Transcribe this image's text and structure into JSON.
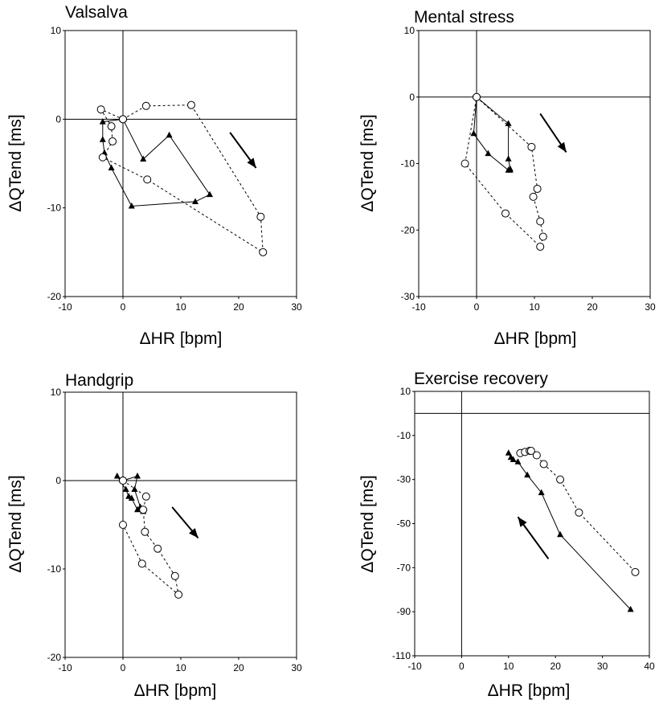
{
  "chart_data": [
    {
      "type": "scatter",
      "title": "Valsalva",
      "xlabel": "ΔHR [bpm]",
      "ylabel": "ΔQTend [ms]",
      "xlim": [
        -10,
        30
      ],
      "ylim": [
        -20,
        10
      ],
      "xticks": [
        "-10",
        "0",
        "10",
        "20",
        "30"
      ],
      "yticks": [
        "10",
        "0",
        "-10",
        "-20"
      ],
      "arrow": {
        "from": [
          18.5,
          -1.5
        ],
        "to": [
          23,
          -5.5
        ]
      },
      "series": [
        {
          "marker": "triangle",
          "line": "solid",
          "points": [
            [
              0,
              0
            ],
            [
              3.5,
              -4.5
            ],
            [
              8,
              -1.8
            ],
            [
              15,
              -8.5
            ],
            [
              12.5,
              -9.3
            ],
            [
              1.5,
              -9.8
            ],
            [
              -2,
              -5.5
            ],
            [
              -3.2,
              -3.8
            ],
            [
              -3.5,
              -2.3
            ],
            [
              -3.5,
              -0.3
            ],
            [
              0,
              0
            ]
          ]
        },
        {
          "marker": "circle",
          "line": "dashed",
          "points": [
            [
              0,
              0
            ],
            [
              4,
              1.5
            ],
            [
              11.8,
              1.6
            ],
            [
              23.8,
              -11
            ],
            [
              24.2,
              -15
            ],
            [
              4.2,
              -6.8
            ],
            [
              -3.5,
              -4.3
            ],
            [
              -1.8,
              -2.5
            ],
            [
              -2,
              -0.8
            ],
            [
              -3.8,
              1.1
            ],
            [
              0,
              0
            ]
          ]
        }
      ]
    },
    {
      "type": "scatter",
      "title": "Mental stress",
      "xlabel": "ΔHR [bpm]",
      "ylabel": "ΔQTend [ms]",
      "xlim": [
        -10,
        30
      ],
      "ylim": [
        -30,
        10
      ],
      "xticks": [
        "-10",
        "0",
        "10",
        "20",
        "30"
      ],
      "yticks": [
        "10",
        "0",
        "-10",
        "-20",
        "-30"
      ],
      "arrow": {
        "from": [
          11,
          -2.5
        ],
        "to": [
          15.5,
          -8.3
        ]
      },
      "series": [
        {
          "marker": "triangle",
          "line": "solid",
          "points": [
            [
              0,
              0
            ],
            [
              5.5,
              -4
            ],
            [
              5.5,
              -9.3
            ],
            [
              5.8,
              -10.8
            ],
            [
              5.8,
              -11
            ],
            [
              5.5,
              -11
            ],
            [
              2,
              -8.5
            ],
            [
              -0.5,
              -5.5
            ],
            [
              0,
              0
            ]
          ]
        },
        {
          "marker": "circle",
          "line": "dashed",
          "points": [
            [
              0,
              0
            ],
            [
              9.5,
              -7.5
            ],
            [
              10.5,
              -13.8
            ],
            [
              9.8,
              -15
            ],
            [
              11,
              -18.7
            ],
            [
              11.5,
              -21
            ],
            [
              11,
              -22.5
            ],
            [
              5,
              -17.5
            ],
            [
              -2,
              -10
            ],
            [
              0,
              0
            ]
          ]
        }
      ]
    },
    {
      "type": "scatter",
      "title": "Handgrip",
      "xlabel": "ΔHR [bpm]",
      "ylabel": "ΔQTend [ms]",
      "xlim": [
        -10,
        30
      ],
      "ylim": [
        -20,
        10
      ],
      "xticks": [
        "-10",
        "0",
        "10",
        "20",
        "30"
      ],
      "yticks": [
        "10",
        "0",
        "-10",
        "-20"
      ],
      "arrow": {
        "from": [
          8.5,
          -3
        ],
        "to": [
          13,
          -6.5
        ]
      },
      "series": [
        {
          "marker": "triangle",
          "line": "solid",
          "points": [
            [
              0,
              0
            ],
            [
              2.5,
              0.5
            ],
            [
              2,
              -1
            ],
            [
              3,
              -3
            ],
            [
              3.5,
              -3.5
            ],
            [
              2.5,
              -3.3
            ],
            [
              1.5,
              -2
            ],
            [
              1,
              -1.8
            ],
            [
              0.5,
              -1
            ],
            [
              -1,
              0.5
            ],
            [
              0,
              0
            ]
          ]
        },
        {
          "marker": "circle",
          "line": "dashed",
          "points": [
            [
              0,
              0
            ],
            [
              4,
              -1.8
            ],
            [
              3.5,
              -3.3
            ],
            [
              3.8,
              -5.8
            ],
            [
              6,
              -7.7
            ],
            [
              9,
              -10.8
            ],
            [
              9.6,
              -12.9
            ],
            [
              3.3,
              -9.4
            ],
            [
              0,
              -5
            ],
            [
              0,
              0
            ]
          ]
        }
      ]
    },
    {
      "type": "scatter",
      "title": "Exercise recovery",
      "xlabel": "ΔHR [bpm]",
      "ylabel": "ΔQTend [ms]",
      "xlim": [
        -10,
        40
      ],
      "ylim": [
        -110,
        10
      ],
      "xticks": [
        "-10",
        "0",
        "10",
        "20",
        "30",
        "40"
      ],
      "yticks": [
        "10",
        "-10",
        "-30",
        "-50",
        "-70",
        "-90",
        "-110"
      ],
      "arrow": {
        "from": [
          18.5,
          -66
        ],
        "to": [
          12,
          -47
        ]
      },
      "series": [
        {
          "marker": "triangle",
          "line": "solid",
          "points": [
            [
              10,
              -18
            ],
            [
              10.5,
              -20
            ],
            [
              11,
              -21
            ],
            [
              12,
              -22
            ],
            [
              14,
              -28
            ],
            [
              17,
              -36
            ],
            [
              21,
              -55
            ],
            [
              36,
              -89
            ]
          ]
        },
        {
          "marker": "circle",
          "line": "dashed",
          "points": [
            [
              12.5,
              -18
            ],
            [
              13.5,
              -17.5
            ],
            [
              14.5,
              -17
            ],
            [
              14.8,
              -17
            ],
            [
              16,
              -19
            ],
            [
              17.5,
              -23
            ],
            [
              21,
              -30
            ],
            [
              25,
              -45
            ],
            [
              37,
              -72
            ]
          ]
        }
      ]
    }
  ]
}
